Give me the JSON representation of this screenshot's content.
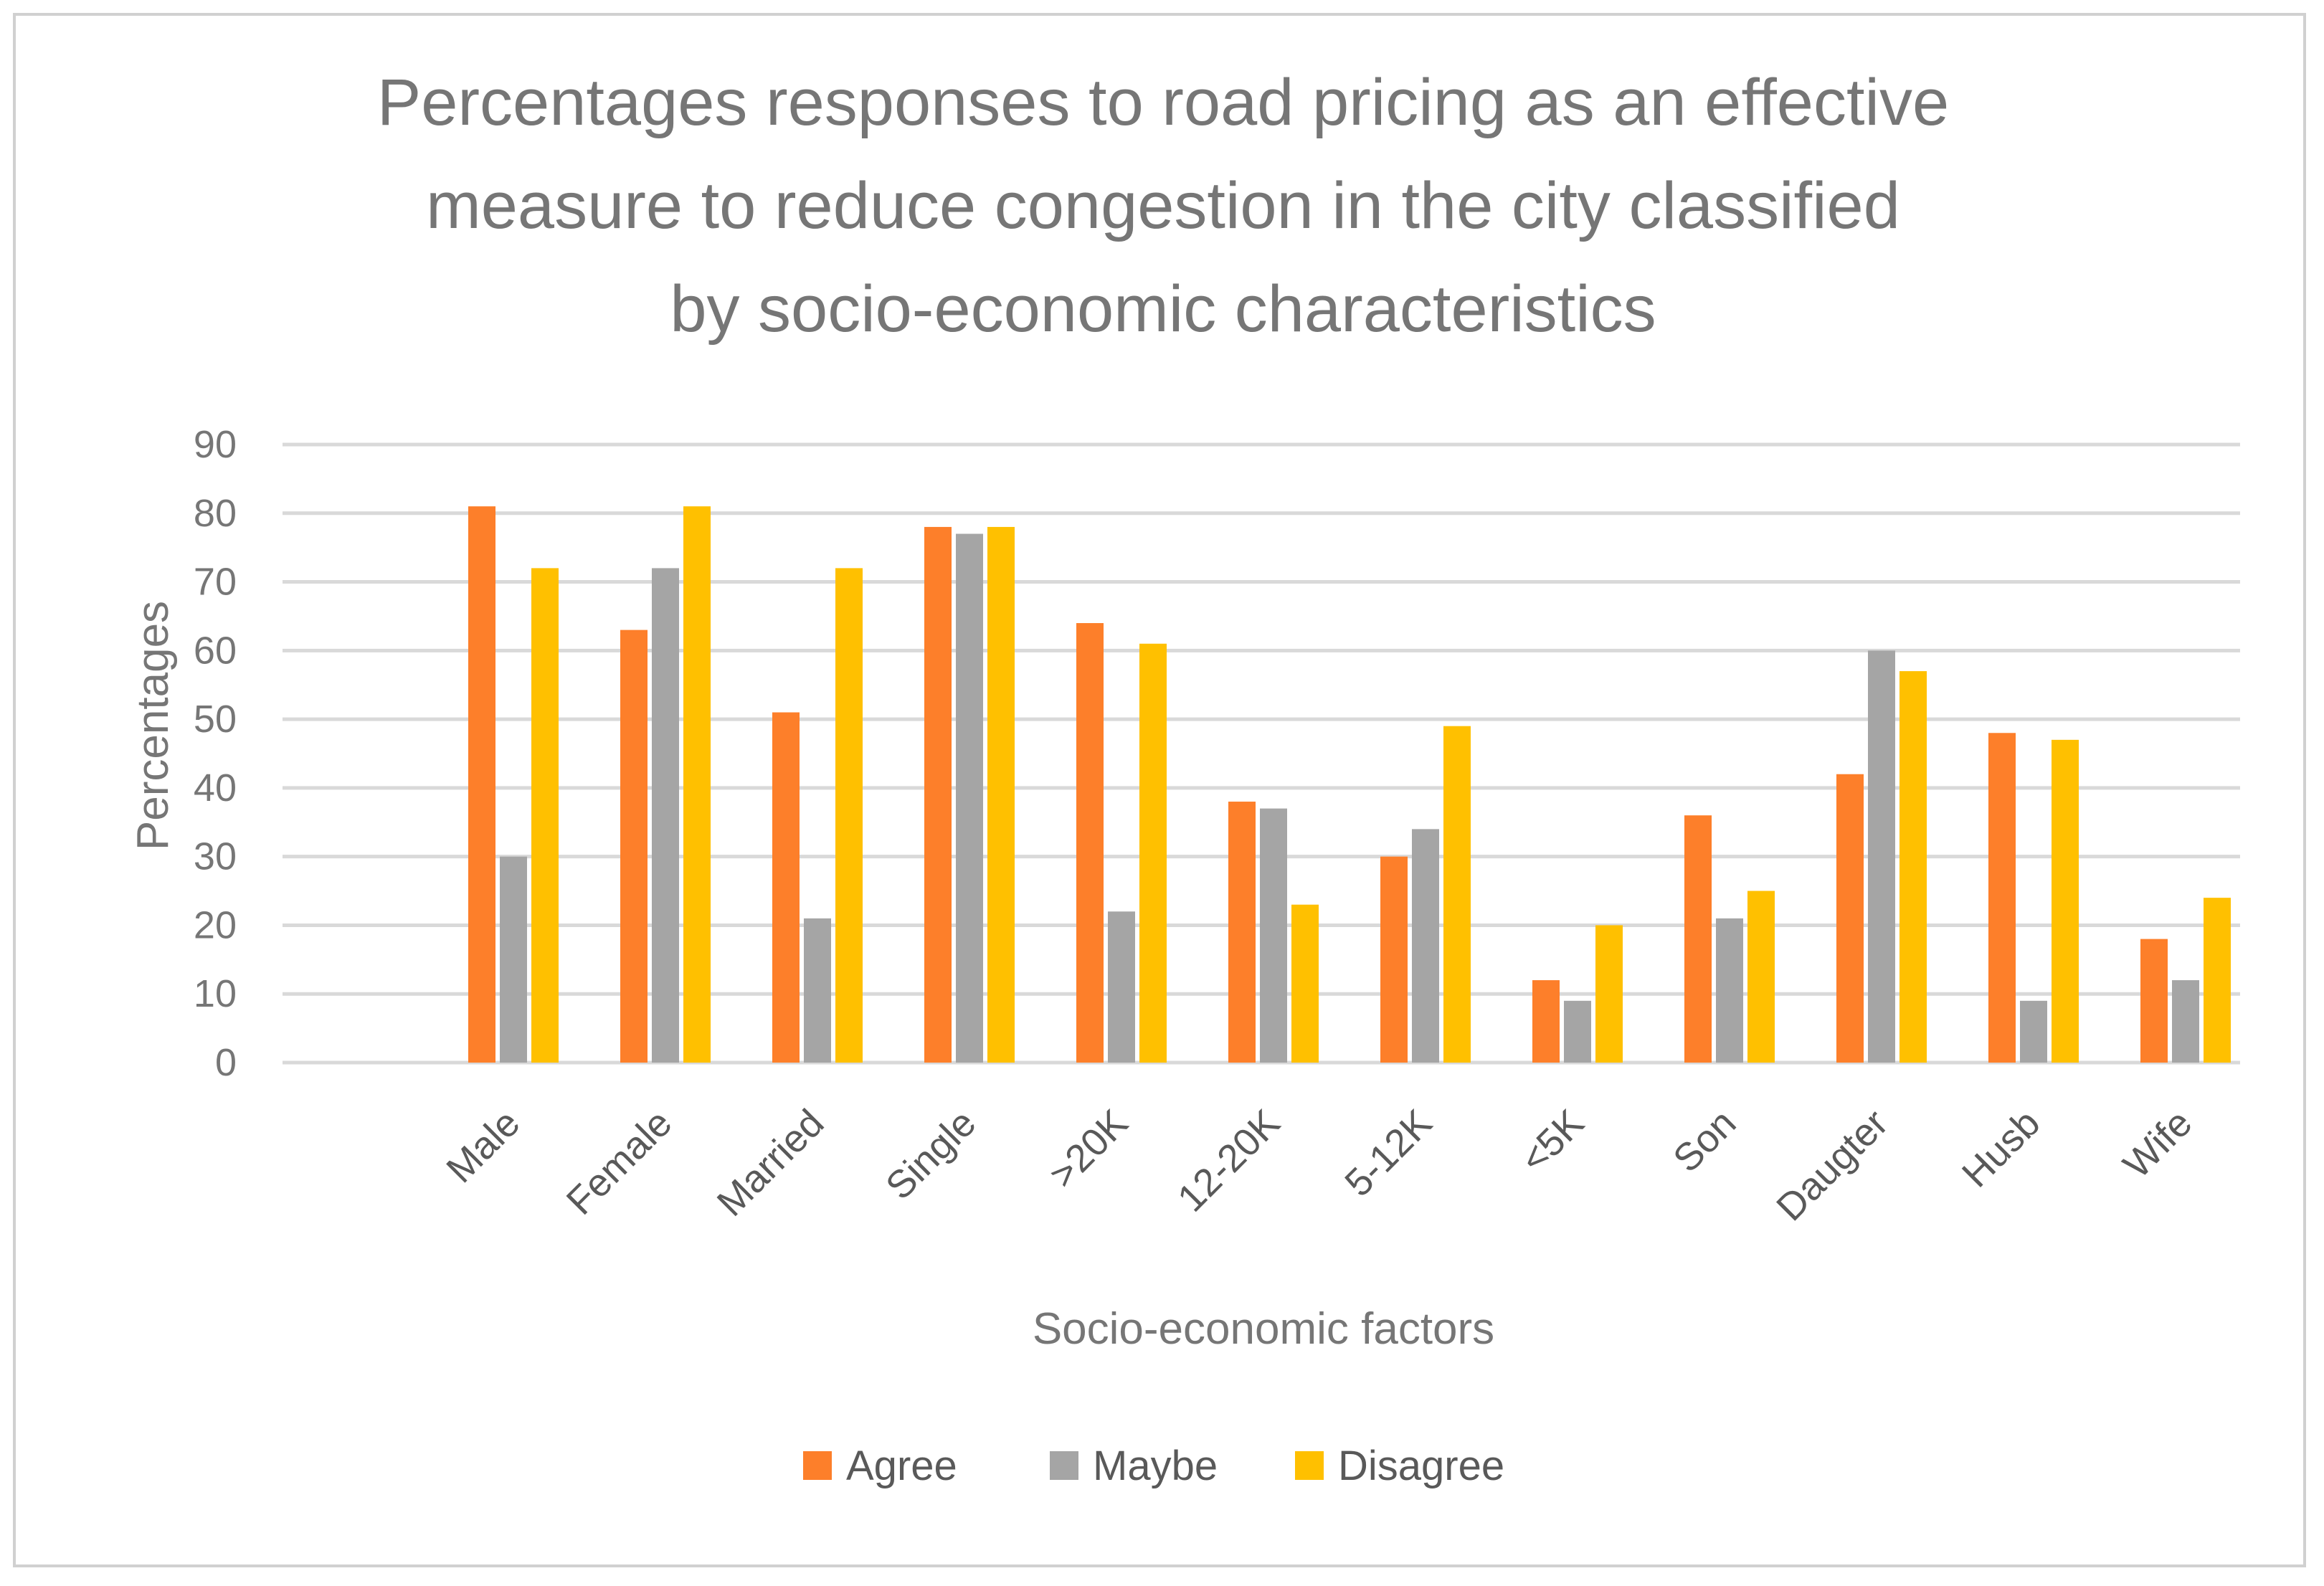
{
  "chart_data": {
    "type": "bar",
    "title_lines": [
      "Percentages responses to road pricing as an effective",
      "measure to reduce congestion in the city classified",
      "by socio-economic characteristics"
    ],
    "xlabel": "Socio-economic factors",
    "ylabel": "Percentages",
    "ylim": [
      0,
      90
    ],
    "yticks": [
      "0",
      "10",
      "20",
      "30",
      "40",
      "50",
      "60",
      "70",
      "80",
      "90"
    ],
    "grid": true,
    "legend_position": "bottom",
    "categories": [
      "Male",
      "Female",
      "Married",
      "Single",
      ">20K",
      "12-20K",
      "5-12K",
      "<5K",
      "Son",
      "Daugter",
      "Husb",
      "Wife"
    ],
    "series": [
      {
        "name": "Agree",
        "color": "#fd7f2a",
        "values": [
          81,
          63,
          51,
          78,
          64,
          38,
          30,
          12,
          36,
          42,
          48,
          18
        ]
      },
      {
        "name": "Maybe",
        "color": "#a5a5a5",
        "values": [
          30,
          72,
          21,
          77,
          22,
          37,
          34,
          9,
          21,
          60,
          9,
          12
        ]
      },
      {
        "name": "Disagree",
        "color": "#ffc000",
        "values": [
          72,
          81,
          72,
          78,
          61,
          23,
          49,
          20,
          25,
          57,
          47,
          24
        ]
      }
    ]
  }
}
